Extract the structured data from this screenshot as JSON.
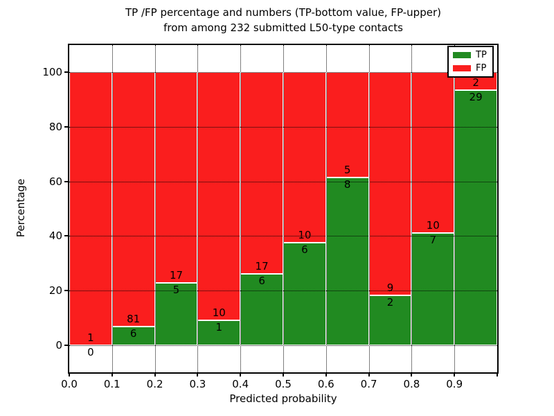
{
  "chart_data": {
    "type": "bar",
    "stacked": true,
    "normalized_to_percent": true,
    "title_line1": "TP /FP percentage and numbers (TP-bottom value, FP-upper)",
    "title_line2": "from among 232 submitted L50-type contacts",
    "xlabel": "Predicted probability",
    "ylabel": "Percentage",
    "xlim": [
      0.0,
      1.0
    ],
    "ylim": [
      -10,
      110
    ],
    "bin_edges": [
      0.0,
      0.1,
      0.2,
      0.3,
      0.4,
      0.5,
      0.6,
      0.7,
      0.8,
      0.9,
      1.0
    ],
    "x_tick_labels": [
      "0.0",
      "0.1",
      "0.2",
      "0.3",
      "0.4",
      "0.5",
      "0.6",
      "0.7",
      "0.8",
      "0.9"
    ],
    "y_tick_values": [
      0,
      20,
      40,
      60,
      80,
      100
    ],
    "y_tick_labels": [
      "0",
      "20",
      "40",
      "60",
      "80",
      "100"
    ],
    "grid": {
      "style": "dotted",
      "color": "#000000",
      "on_top_of_bars": true
    },
    "series": [
      {
        "name": "TP",
        "color": "#218a21",
        "counts": [
          0,
          6,
          5,
          1,
          6,
          6,
          8,
          2,
          7,
          29
        ]
      },
      {
        "name": "FP",
        "color": "#fa1e1e",
        "counts": [
          1,
          81,
          17,
          10,
          17,
          10,
          5,
          9,
          10,
          2
        ]
      }
    ],
    "bar_edge_color": "#ffffff",
    "legend": {
      "position": "upper right",
      "entries": [
        {
          "label": "TP",
          "color": "#218a21"
        },
        {
          "label": "FP",
          "color": "#fa1e1e"
        }
      ]
    }
  }
}
